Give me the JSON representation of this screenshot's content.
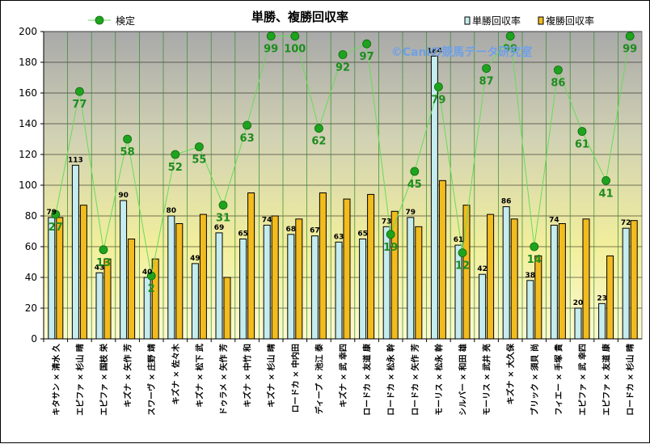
{
  "chart_data": {
    "type": "bar",
    "title": "単勝、複勝回収率",
    "watermark": "©Caniの競馬データ研究室",
    "ylim": [
      0,
      200
    ],
    "yticks": [
      0,
      20,
      40,
      60,
      80,
      100,
      120,
      140,
      160,
      180,
      200
    ],
    "categories": [
      "キタサン × 清水 久",
      "エピファ × 杉山 晴",
      "エピファ × 国枝 栄",
      "キズナ × 矢作 芳",
      "スワーヴ × 庄野 靖",
      "キズナ × 佐々木",
      "キズナ × 松下 武",
      "ドゥラメ × 矢作 芳",
      "キズナ × 中竹 和",
      "キズナ × 杉山 晴",
      "ロードカ × 中内田",
      "ディープ × 池江 泰",
      "キズナ × 武 幸四",
      "ロードカ × 友道 康",
      "ロードカ × 松永 幹",
      "ロードカ × 矢作 芳",
      "モーリス × 松永 幹",
      "シルバー × 和田 雄",
      "モーリス × 武井 亮",
      "キズナ × 大久保",
      "ブリック × 須貝 尚",
      "フィエー × 手塚 貴",
      "エピファ × 武 幸四",
      "エピファ × 友道 康",
      "ロードカ × 杉山 晴"
    ],
    "series": [
      {
        "name": "単勝回収率",
        "color": "#c5ecee",
        "values": [
          79,
          113,
          43,
          90,
          40,
          80,
          49,
          69,
          65,
          74,
          68,
          67,
          63,
          65,
          73,
          79,
          184,
          61,
          42,
          86,
          38,
          74,
          20,
          23,
          72
        ],
        "value_labels": [
          "79",
          "113",
          "43",
          "90",
          "40",
          "80",
          "49",
          "69",
          "65",
          "74",
          "68",
          "67",
          "63",
          "65",
          "73",
          "79",
          "184",
          "61",
          "42",
          "86",
          "38",
          "74",
          "20",
          "23",
          "72"
        ]
      },
      {
        "name": "複勝回収率",
        "color": "#f2bb1e",
        "values": [
          79,
          87,
          52,
          65,
          52,
          75,
          81,
          40,
          95,
          80,
          78,
          95,
          91,
          94,
          83,
          73,
          103,
          87,
          81,
          78,
          54,
          75,
          78,
          54,
          77
        ]
      },
      {
        "name": "検定",
        "type": "line",
        "color": "#22aa22",
        "values": [
          81,
          161,
          58,
          130,
          41,
          120,
          125,
          87,
          139,
          197,
          197,
          137,
          185,
          192,
          68,
          109,
          164,
          56,
          176,
          197,
          60,
          175,
          135,
          103,
          197
        ],
        "value_labels": [
          "27",
          "77",
          "13",
          "58",
          "2",
          "52",
          "55",
          "31",
          "63",
          "99",
          "100",
          "62",
          "92",
          "97",
          "19",
          "45",
          "79",
          "12",
          "87",
          "99",
          "14",
          "86",
          "61",
          "41",
          "99"
        ]
      }
    ],
    "legend": [
      {
        "label": "検定",
        "position": "top-left"
      },
      {
        "label": "単勝回収率",
        "position": "top-right"
      },
      {
        "label": "複勝回収率",
        "position": "top-right"
      }
    ],
    "grid": true
  }
}
